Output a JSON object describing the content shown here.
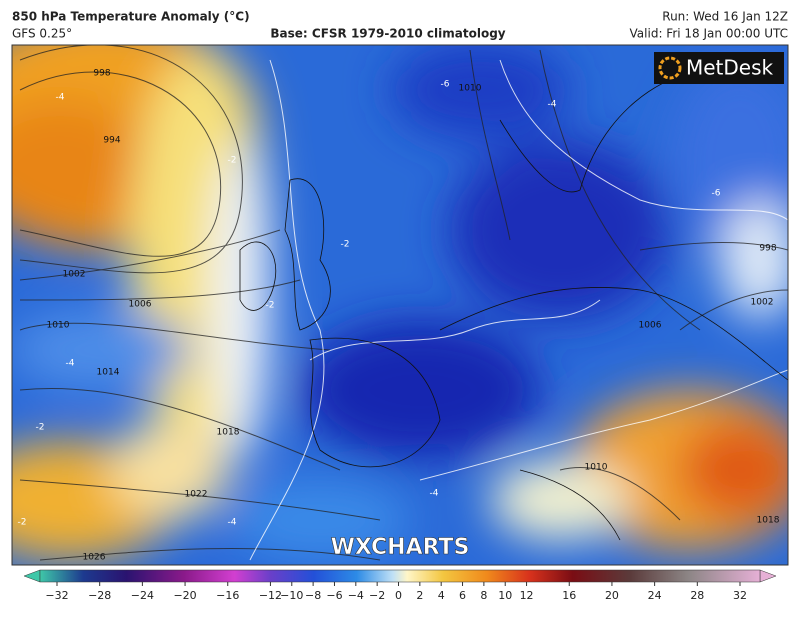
{
  "header": {
    "title": "850 hPa Temperature Anomaly (°C)",
    "model": "GFS 0.25°",
    "base": "Base: CFSR 1979-2010 climatology",
    "run": "Run: Wed 16 Jan 12Z",
    "valid": "Valid: Fri 18 Jan 00:00 UTC"
  },
  "logo": "MetDesk",
  "watermark": "WXCHARTS",
  "isobar_labels": [
    "998",
    "994",
    "1002",
    "1006",
    "1010",
    "1014",
    "1018",
    "1022",
    "1026",
    "1010",
    "998",
    "1002",
    "1006",
    "1010",
    "1018"
  ],
  "anomaly_labels": [
    "-4",
    "-2",
    "-6",
    "-4",
    "-2",
    "-4",
    "-6",
    "-4",
    "-2",
    "-2",
    "-4",
    "-2"
  ],
  "colorbar": {
    "min": -32,
    "max": 32,
    "ticks": [
      {
        "value": -32,
        "label": "−32"
      },
      {
        "value": -28,
        "label": "−28"
      },
      {
        "value": -24,
        "label": "−24"
      },
      {
        "value": -20,
        "label": "−20"
      },
      {
        "value": -16,
        "label": "−16"
      },
      {
        "value": -12,
        "label": "−12"
      },
      {
        "value": -10,
        "label": "−10"
      },
      {
        "value": -8,
        "label": "−8"
      },
      {
        "value": -6,
        "label": "−6"
      },
      {
        "value": -4,
        "label": "−4"
      },
      {
        "value": -2,
        "label": "−2"
      },
      0,
      2,
      4,
      6,
      8,
      10,
      12,
      16,
      20,
      24,
      28,
      32
    ]
  }
}
